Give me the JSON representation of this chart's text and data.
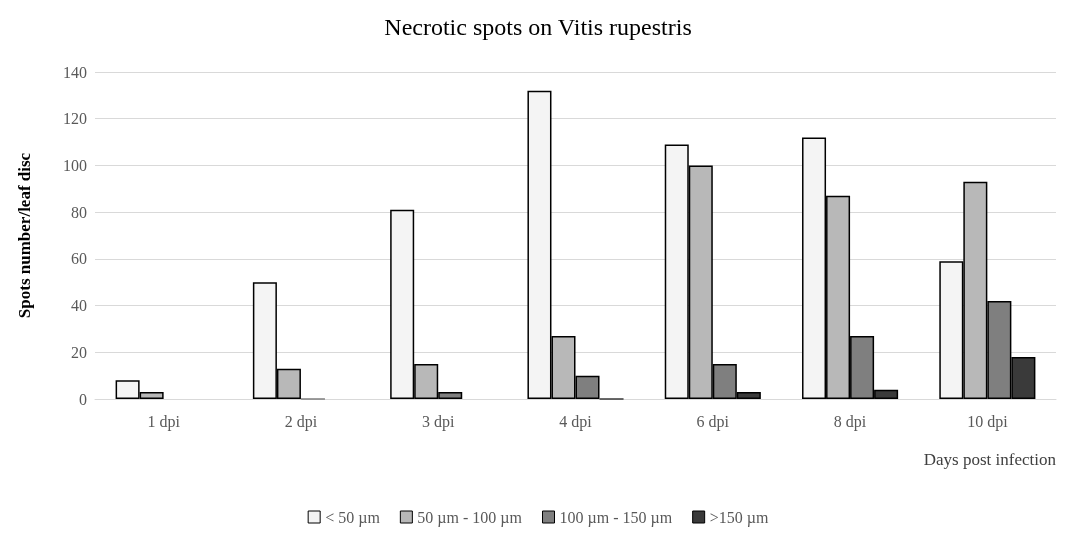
{
  "chart_data": {
    "type": "bar",
    "title": "Necrotic spots on Vitis rupestris",
    "xlabel": "Days post infection",
    "ylabel": "Spots number/leaf disc",
    "categories": [
      "1 dpi",
      "2 dpi",
      "3 dpi",
      "4 dpi",
      "6 dpi",
      "8 dpi",
      "10 dpi"
    ],
    "series": [
      {
        "name": "< 50 µm",
        "color": "#f4f4f4",
        "values": [
          8,
          50,
          81,
          132,
          109,
          112,
          59
        ]
      },
      {
        "name": "50 µm - 100 µm",
        "color": "#b8b8b8",
        "values": [
          3,
          13,
          15,
          27,
          100,
          87,
          93
        ]
      },
      {
        "name": "100 µm - 150 µm",
        "color": "#7f7f7f",
        "values": [
          null,
          0,
          3,
          10,
          15,
          27,
          42
        ]
      },
      {
        "name": ">150 µm",
        "color": "#3a3a3a",
        "values": [
          null,
          null,
          null,
          0,
          3,
          4,
          18
        ]
      }
    ],
    "ylim": [
      0,
      140
    ],
    "yticks": [
      0,
      20,
      40,
      60,
      80,
      100,
      120,
      140
    ],
    "grid": "y",
    "legend": "bottom"
  }
}
